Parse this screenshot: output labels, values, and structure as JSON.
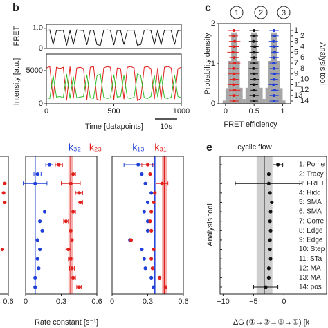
{
  "chart_data": [
    {
      "type": "line",
      "panel": "b",
      "ylabel": "FRET",
      "xlim": [
        0,
        1000
      ],
      "ylim": [
        0,
        1.2
      ],
      "yticks": [
        0,
        {
          "value": 1,
          "label": "1.0"
        }
      ],
      "x": [
        0,
        25,
        50,
        75,
        100,
        125,
        150,
        175,
        200,
        225,
        250,
        275,
        300,
        325,
        350,
        375,
        400,
        425,
        450,
        475,
        500,
        525,
        550,
        575,
        600,
        625,
        650,
        675,
        700,
        725,
        750,
        775,
        800,
        825,
        850,
        875,
        900,
        925,
        950,
        975,
        1000
      ],
      "series": [
        {
          "color": "#111111",
          "values": [
            0.9,
            0.92,
            0.2,
            0.9,
            0.88,
            0.91,
            0.15,
            0.9,
            0.2,
            0.92,
            0.9,
            0.89,
            0.18,
            0.9,
            0.91,
            0.2,
            0.15,
            0.9,
            0.92,
            0.9,
            0.17,
            0.9,
            0.88,
            0.2,
            0.9,
            0.91,
            0.9,
            0.16,
            0.2,
            0.9,
            0.92,
            0.89,
            0.2,
            0.9,
            0.18,
            0.9,
            0.91,
            0.9,
            0.2,
            0.88,
            0.9
          ]
        }
      ]
    },
    {
      "type": "line",
      "ylabel": "Intensity [a.u.]",
      "xlabel": "Time [datapoints]",
      "annotation": "10s",
      "xlim": [
        0,
        1000
      ],
      "xticks": [
        0,
        500,
        1000
      ],
      "ylim": [
        0,
        7500
      ],
      "yticks": [
        0,
        5000
      ],
      "x": [
        0,
        25,
        50,
        75,
        100,
        125,
        150,
        175,
        200,
        225,
        250,
        275,
        300,
        325,
        350,
        375,
        400,
        425,
        450,
        475,
        500,
        525,
        550,
        575,
        600,
        625,
        650,
        675,
        700,
        725,
        750,
        775,
        800,
        825,
        850,
        875,
        900,
        925,
        950,
        975,
        1000
      ],
      "series": [
        {
          "color": "#e0201c",
          "values": [
            5400,
            5600,
            700,
            5500,
            5300,
            5500,
            500,
            5600,
            800,
            5400,
            5500,
            5300,
            600,
            5500,
            5600,
            700,
            500,
            5400,
            5600,
            5500,
            600,
            5400,
            5300,
            700,
            5500,
            5600,
            5400,
            500,
            800,
            5500,
            5600,
            5300,
            700,
            5400,
            600,
            5500,
            5600,
            5400,
            700,
            5300,
            5500
          ]
        },
        {
          "color": "#2fbf2a",
          "values": [
            900,
            800,
            4300,
            1000,
            1100,
            900,
            4500,
            800,
            4100,
            900,
            1000,
            1100,
            4400,
            900,
            800,
            4200,
            4500,
            1000,
            800,
            900,
            4400,
            1000,
            1100,
            4300,
            900,
            800,
            1000,
            4500,
            4200,
            900,
            800,
            1100,
            4300,
            1000,
            4400,
            900,
            800,
            1000,
            4300,
            1100,
            900
          ]
        }
      ]
    },
    {
      "type": "histogram",
      "panel": "c",
      "states": [
        "1",
        "2",
        "3"
      ],
      "ylabel": "Probability density",
      "xlabel": "FRET efficiency",
      "y2label": "Analysis tool",
      "xlim": [
        -0.12,
        1.14
      ],
      "xticks": [
        0,
        0.5,
        1
      ],
      "ylim": [
        0,
        2
      ],
      "yticks": [
        0,
        1,
        2
      ],
      "color": "#a6a6a6",
      "bins": [
        -0.1,
        -0.05,
        0,
        0.05,
        0.1,
        0.15,
        0.2,
        0.25,
        0.3,
        0.35,
        0.4,
        0.45,
        0.5,
        0.55,
        0.6,
        0.65,
        0.7,
        0.75,
        0.8,
        0.85,
        0.9,
        0.95,
        1,
        1.05,
        1.1
      ],
      "counts": [
        0.01,
        0.08,
        0.39,
        1.07,
        1.78,
        1.78,
        1.07,
        0.4,
        0.12,
        0.4,
        1.07,
        1.78,
        1.78,
        1.07,
        0.4,
        0.12,
        0.4,
        1.07,
        1.78,
        1.78,
        1.07,
        0.39,
        0.08,
        0.01
      ],
      "tools": [
        "1",
        "2",
        "3",
        "4",
        "5",
        "6",
        "7",
        "8",
        "9",
        "10",
        "11",
        "12",
        "13",
        "14"
      ],
      "series": [
        {
          "color": "#e0201c",
          "values": [
            0.15,
            0.14,
            0.16,
            0.15,
            0.13,
            0.15,
            0.16,
            0.14,
            0.15,
            0.15,
            0.14,
            0.16,
            0.15,
            0.15
          ],
          "errors": [
            0.1,
            0.08,
            0.1,
            0.09,
            0.1,
            0.08,
            0.1,
            0.09,
            0.1,
            0.08,
            0.09,
            0.1,
            0.09,
            0.08
          ]
        },
        {
          "color": "#111111",
          "values": [
            0.5,
            0.5,
            0.49,
            0.51,
            0.5,
            0.5,
            0.5,
            0.49,
            0.5,
            0.51,
            0.5,
            0.5,
            0.5,
            0.5
          ],
          "errors": [
            0.08,
            0.07,
            0.08,
            0.07,
            0.08,
            0.06,
            0.07,
            0.08,
            0.07,
            0.08,
            0.07,
            0.06,
            0.08,
            0.07
          ]
        },
        {
          "color": "#1f3fd8",
          "values": [
            0.85,
            0.86,
            0.84,
            0.85,
            0.86,
            0.85,
            0.84,
            0.85,
            0.86,
            0.85,
            0.84,
            0.86,
            0.85,
            0.85
          ],
          "errors": [
            0.08,
            0.07,
            0.08,
            0.08,
            0.07,
            0.08,
            0.07,
            0.08,
            0.08,
            0.07,
            0.08,
            0.07,
            0.08,
            0.08
          ]
        }
      ]
    },
    {
      "type": "dot",
      "xlim": [
        0,
        0.6
      ],
      "xticks": [
        0.6
      ],
      "series": [
        {
          "color": "#e0201c",
          "values": [
            null,
            null,
            0.57,
            0.56,
            0.57,
            null,
            null,
            null,
            null,
            0.55,
            null,
            null,
            null,
            null
          ]
        }
      ]
    },
    {
      "type": "dot",
      "xlabel": "Rate constant [s⁻¹]",
      "xlim": [
        0,
        0.6
      ],
      "xticks": [
        0,
        0.3,
        0.6
      ],
      "series": [
        {
          "name": "k₃₂",
          "color": "#1f3fd8",
          "reference": 0.08,
          "values": [
            0.2,
            0.1,
            0.08,
            null,
            null,
            0.16,
            0.12,
            0.14,
            0.1,
            0.12,
            0.1,
            0.11,
            0.08,
            0.08
          ],
          "errors": [
            0.03,
            0.03,
            0.1,
            null,
            null,
            null,
            null,
            null,
            null,
            null,
            null,
            null,
            null,
            null
          ]
        },
        {
          "name": "k₂₃",
          "color": "#e0201c",
          "reference": 0.38,
          "band": 0.02,
          "values": [
            0.28,
            0.4,
            0.38,
            0.45,
            0.46,
            0.4,
            0.34,
            0.38,
            0.39,
            0.36,
            0.38,
            0.39,
            0.4,
            0.45
          ],
          "errors": [
            0.03,
            0.02,
            0.08,
            0.03,
            0.02,
            0.02,
            0.02,
            null,
            null,
            0.02,
            0.02,
            0.02,
            0.02,
            0.02
          ]
        }
      ]
    },
    {
      "type": "dot",
      "xlim": [
        0,
        0.6
      ],
      "xticks": [
        0,
        0.3,
        0.6
      ],
      "series": [
        {
          "name": "k₁₃",
          "color": "#1f3fd8",
          "reference": 0.36,
          "values": [
            0.22,
            0.25,
            0.28,
            0.33,
            0.3,
            0.27,
            0.3,
            0.3,
            0.15,
            0.25,
            0.27,
            0.28,
            0.33,
            0.35
          ],
          "errors": [
            0.12,
            null,
            null,
            null,
            null,
            null,
            null,
            null,
            null,
            null,
            null,
            null,
            null,
            null
          ]
        },
        {
          "name": "k₃₁",
          "color": "#e0201c",
          "reference": 0.44,
          "band": 0.02,
          "values": [
            0.3,
            0.32,
            0.42,
            0.36,
            0.35,
            0.33,
            0.32,
            0.33,
            0.16,
            0.35,
            0.33,
            0.34,
            0.4,
            0.45
          ],
          "errors": [
            0.05,
            null,
            0.05,
            null,
            null,
            null,
            null,
            null,
            null,
            null,
            null,
            null,
            null,
            null
          ]
        }
      ]
    },
    {
      "type": "dot",
      "panel": "e",
      "title": "cyclic flow",
      "ylabel": "Analysis tool",
      "xlabel": "ΔG (①→②→③→①) [k",
      "xlim": [
        -10.5,
        7
      ],
      "xticks": [
        {
          "value": -10,
          "label": "−10"
        },
        {
          "value": -5,
          "label": "−5"
        },
        0
      ],
      "labels": [
        "1: Pome",
        "2: Tracy",
        "3: FRET",
        "4: Hidd",
        "5: SMA",
        "6: SMA",
        "7: Corre",
        "8: Edge",
        "9: Edge",
        "10: Step",
        "11: STa",
        "12: MA",
        "13: MA",
        "14: pos"
      ],
      "series": [
        {
          "color": "#111111",
          "reference": -3.2,
          "band": 1.3,
          "values": [
            -1,
            -2.5,
            -2.5,
            -2.3,
            -2,
            -2.2,
            -2.3,
            -2.2,
            -2.3,
            -2.3,
            -2.2,
            -2.5,
            -2.5,
            -3
          ],
          "errors": [
            0.8,
            null,
            5.5,
            null,
            null,
            null,
            null,
            null,
            null,
            null,
            null,
            null,
            null,
            2
          ]
        }
      ]
    }
  ]
}
